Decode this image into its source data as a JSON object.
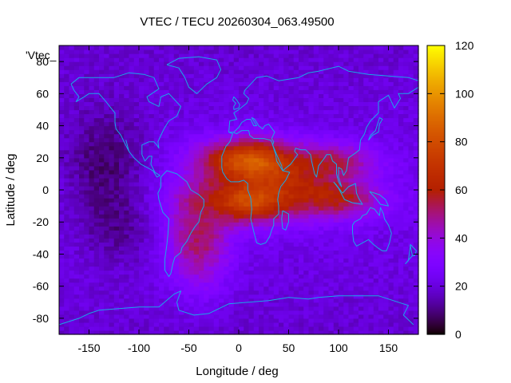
{
  "chart_data": {
    "type": "heatmap",
    "title": "VTEC / TECU 20260304_063.49500",
    "xlabel": "Longitude / deg",
    "ylabel": "Latitude / deg",
    "legend_key": "'Vtec_",
    "xlim": [
      -180,
      180
    ],
    "ylim": [
      -90,
      90
    ],
    "x_ticks": [
      -150,
      -100,
      -50,
      0,
      50,
      100,
      150
    ],
    "y_ticks": [
      -80,
      -60,
      -40,
      -20,
      0,
      20,
      40,
      60,
      80
    ],
    "colorbar": {
      "range": [
        0,
        120
      ],
      "ticks": [
        0,
        20,
        40,
        60,
        80,
        100,
        120
      ],
      "palette": "gnuplot-black-purple-red-orange-yellow"
    },
    "grid_resolution_deg": {
      "lon": 5,
      "lat": 2.5
    },
    "features": [
      {
        "name": "background_mean",
        "value": 24
      },
      {
        "name": "crest_north_atlantic_africa",
        "lon": 10,
        "lat": 18,
        "peak": 82,
        "sigma_lon": 35,
        "sigma_lat": 10
      },
      {
        "name": "crest_south_atlantic",
        "lon": 5,
        "lat": -7,
        "peak": 78,
        "sigma_lon": 38,
        "sigma_lat": 10
      },
      {
        "name": "south_america_tongue",
        "lon": -40,
        "lat": -30,
        "peak": 56,
        "sigma_lon": 22,
        "sigma_lat": 22
      },
      {
        "name": "indian_ocean_extension",
        "lon": 100,
        "lat": -5,
        "peak": 62,
        "sigma_lon": 30,
        "sigma_lat": 9
      },
      {
        "name": "arabia_india_extension",
        "lon": 95,
        "lat": 18,
        "peak": 58,
        "sigma_lon": 30,
        "sigma_lat": 8
      },
      {
        "name": "pacific_low",
        "lon": -135,
        "lat": 15,
        "peak": 6,
        "sigma_lon": 30,
        "sigma_lat": 25
      },
      {
        "name": "north_polar_cap",
        "lat": 90,
        "value": 18
      },
      {
        "name": "south_polar_cap",
        "lat": -90,
        "value": 14
      }
    ],
    "series": [
      {
        "name": "VTEC",
        "units": "TECU",
        "min": 4,
        "max": 90
      }
    ]
  },
  "colors": {
    "coastline": "#1aa7e8",
    "frame": "#000000",
    "background": "#ffffff"
  }
}
